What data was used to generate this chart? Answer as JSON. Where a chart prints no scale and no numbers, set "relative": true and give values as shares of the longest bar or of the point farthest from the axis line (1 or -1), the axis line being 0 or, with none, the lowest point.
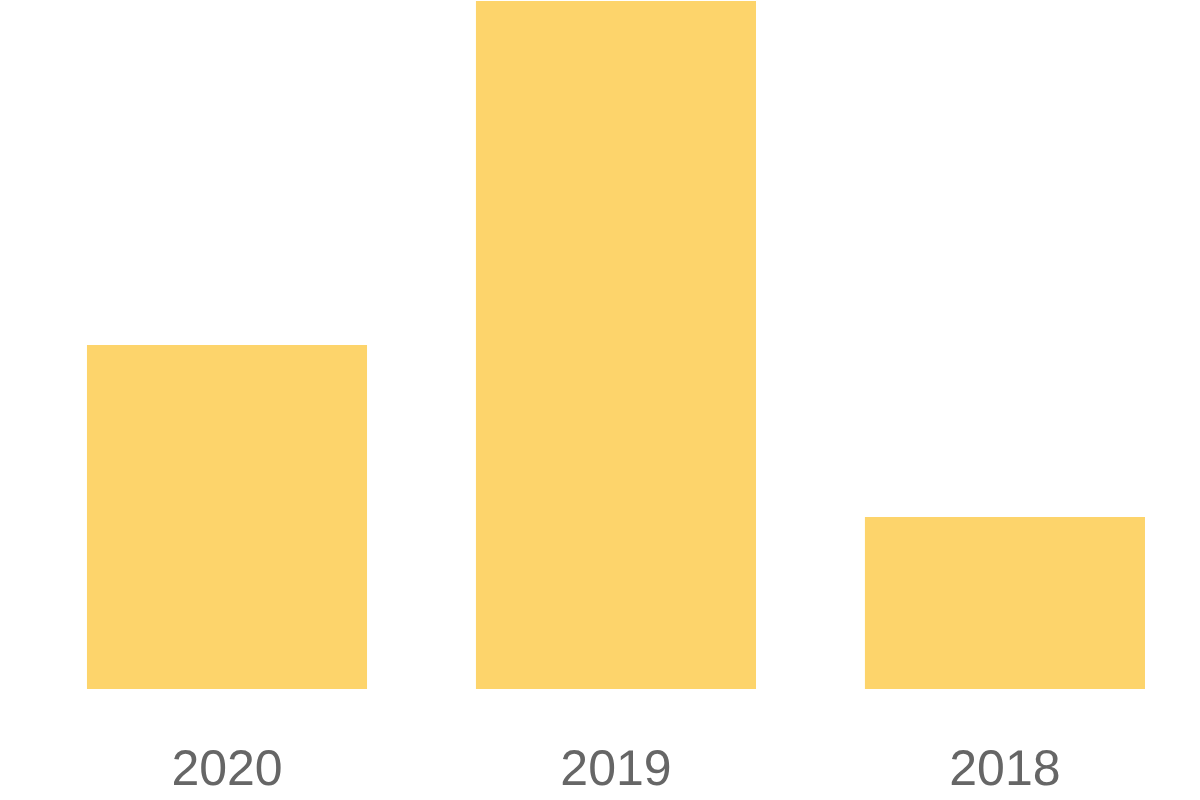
{
  "chart_data": {
    "type": "bar",
    "relative": true,
    "categories": [
      "2020",
      "2019",
      "2018"
    ],
    "values": [
      0.5,
      1,
      0.25
    ],
    "color": "#fdd46b"
  }
}
